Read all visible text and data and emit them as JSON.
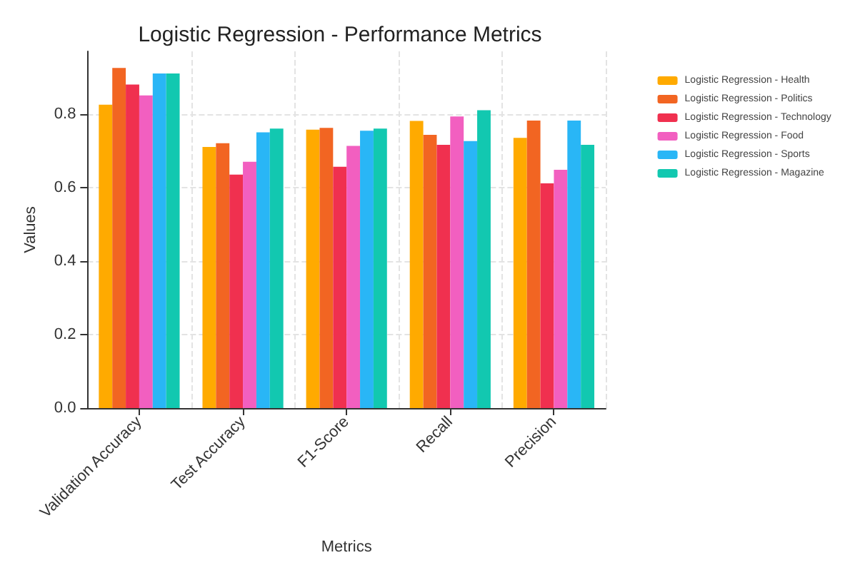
{
  "chart_data": {
    "type": "bar",
    "title": "Logistic Regression - Performance Metrics",
    "xlabel": "Metrics",
    "ylabel": "Values",
    "categories": [
      "Validation Accuracy",
      "Test Accuracy",
      "F1-Score",
      "Recall",
      "Precision"
    ],
    "series": [
      {
        "name": "Logistic Regression - Health",
        "color": "#ffaa00",
        "values": [
          0.825,
          0.71,
          0.757,
          0.781,
          0.735
        ]
      },
      {
        "name": "Logistic Regression - Politics",
        "color": "#f26522",
        "values": [
          0.925,
          0.72,
          0.762,
          0.743,
          0.782
        ]
      },
      {
        "name": "Logistic Regression - Technology",
        "color": "#f0304f",
        "values": [
          0.88,
          0.635,
          0.656,
          0.716,
          0.611
        ]
      },
      {
        "name": "Logistic Regression - Food",
        "color": "#f25fc0",
        "values": [
          0.85,
          0.67,
          0.713,
          0.793,
          0.648
        ]
      },
      {
        "name": "Logistic Regression - Sports",
        "color": "#29b6f6",
        "values": [
          0.91,
          0.75,
          0.754,
          0.726,
          0.782
        ]
      },
      {
        "name": "Logistic Regression - Magazine",
        "color": "#12c8b0",
        "values": [
          0.91,
          0.76,
          0.76,
          0.81,
          0.716
        ]
      }
    ],
    "ylim": [
      0,
      0.97
    ],
    "yticks": [
      {
        "value": 0,
        "label": "0.0"
      },
      0.2,
      0.4,
      0.6,
      0.8
    ],
    "grid": true,
    "legend": "top right"
  }
}
